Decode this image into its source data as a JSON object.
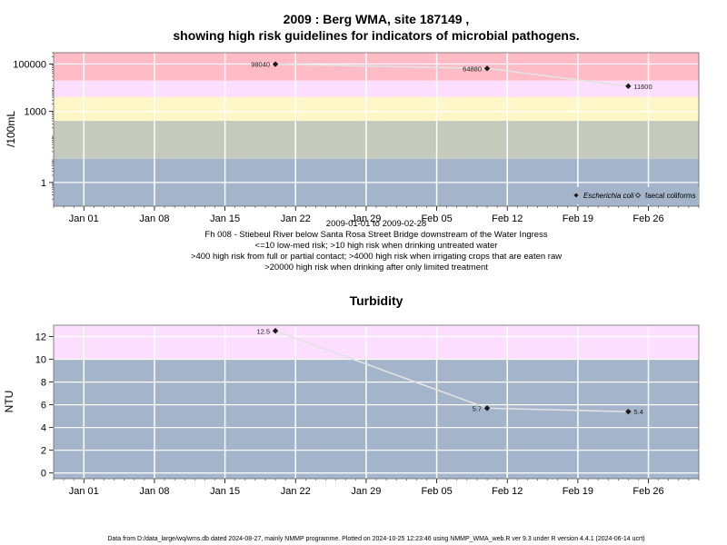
{
  "chart_data": [
    {
      "type": "line",
      "title": "2009 : Berg WMA, site 187149 ,",
      "subtitle": "showing high risk guidelines for indicators of microbial pathogens.",
      "ylabel": "/100mL",
      "y_scale": "log",
      "x_tick_labels": [
        "Jan 01",
        "Jan 08",
        "Jan 15",
        "Jan 22",
        "Jan 29",
        "Feb 05",
        "Feb 12",
        "Feb 19",
        "Feb 26"
      ],
      "x_ticks": [
        "2009-01-01",
        "2009-01-08",
        "2009-01-15",
        "2009-01-22",
        "2009-01-29",
        "2009-02-05",
        "2009-02-12",
        "2009-02-19",
        "2009-02-26"
      ],
      "xlim": [
        "2008-12-29",
        "2009-03-03"
      ],
      "y_tick_labels": [
        "1",
        "1000",
        "100000"
      ],
      "y_ticks": [
        1,
        1000,
        100000
      ],
      "ylim": [
        0.1,
        300000
      ],
      "grid": true,
      "bands": [
        {
          "from": 0.1,
          "to": 10,
          "color": "#a3b4cb"
        },
        {
          "from": 10,
          "to": 400,
          "color": "#c4cbbd"
        },
        {
          "from": 400,
          "to": 4000,
          "color": "#fff7c7"
        },
        {
          "from": 4000,
          "to": 20000,
          "color": "#fcdfff"
        },
        {
          "from": 20000,
          "to": 300000,
          "color": "#ffbcc7"
        }
      ],
      "series": [
        {
          "name": "Escherichia coli",
          "marker": "filled-diamond",
          "x": [
            "2009-01-20",
            "2009-02-10",
            "2009-02-24"
          ],
          "y": [
            98040,
            64880,
            11600
          ],
          "labels": [
            "98040",
            "64880",
            "11600"
          ]
        },
        {
          "name": "faecal coliforms",
          "marker": "open-diamond",
          "x": [],
          "y": []
        }
      ],
      "legend_position": "bottom-right",
      "captions": [
        "2009-01-01 to 2009-02-28",
        "Fh 008 - Stiebeul River below Santa Rosa Street Bridge downstream of the Water Ingress",
        "<=10 low-med risk; >10 high risk when drinking untreated water",
        ">400 high risk from full or partial contact; >4000 high risk when irrigating crops that are eaten raw",
        ">20000 high risk when drinking after only limited treatment"
      ]
    },
    {
      "type": "line",
      "title": "Turbidity",
      "ylabel": "NTU",
      "x_tick_labels": [
        "Jan 01",
        "Jan 08",
        "Jan 15",
        "Jan 22",
        "Jan 29",
        "Feb 05",
        "Feb 12",
        "Feb 19",
        "Feb 26"
      ],
      "x_ticks": [
        "2009-01-01",
        "2009-01-08",
        "2009-01-15",
        "2009-01-22",
        "2009-01-29",
        "2009-02-05",
        "2009-02-12",
        "2009-02-19",
        "2009-02-26"
      ],
      "xlim": [
        "2008-12-29",
        "2009-03-03"
      ],
      "y_tick_labels": [
        "0",
        "2",
        "4",
        "6",
        "8",
        "10",
        "12"
      ],
      "y_ticks": [
        0,
        2,
        4,
        6,
        8,
        10,
        12
      ],
      "ylim": [
        -0.5,
        13
      ],
      "grid": true,
      "bands": [
        {
          "from": -0.5,
          "to": 10,
          "color": "#a3b4cb"
        },
        {
          "from": 10,
          "to": 13,
          "color": "#fcdfff"
        }
      ],
      "series": [
        {
          "marker": "filled-diamond",
          "x": [
            "2009-01-20",
            "2009-02-10",
            "2009-02-24"
          ],
          "y": [
            12.5,
            5.7,
            5.4
          ],
          "labels": [
            "12.5",
            "5.7",
            "5.4"
          ]
        }
      ]
    }
  ],
  "footer": "Data from D:/data_large/wq/wms.db dated 2024-08-27, mainly NMMP programme. Plotted on 2024-10-25 12:23:46 using NMMP_WMA_web.R ver 9.3 under R version 4.4.1 (2024-06-14 ucrt)"
}
